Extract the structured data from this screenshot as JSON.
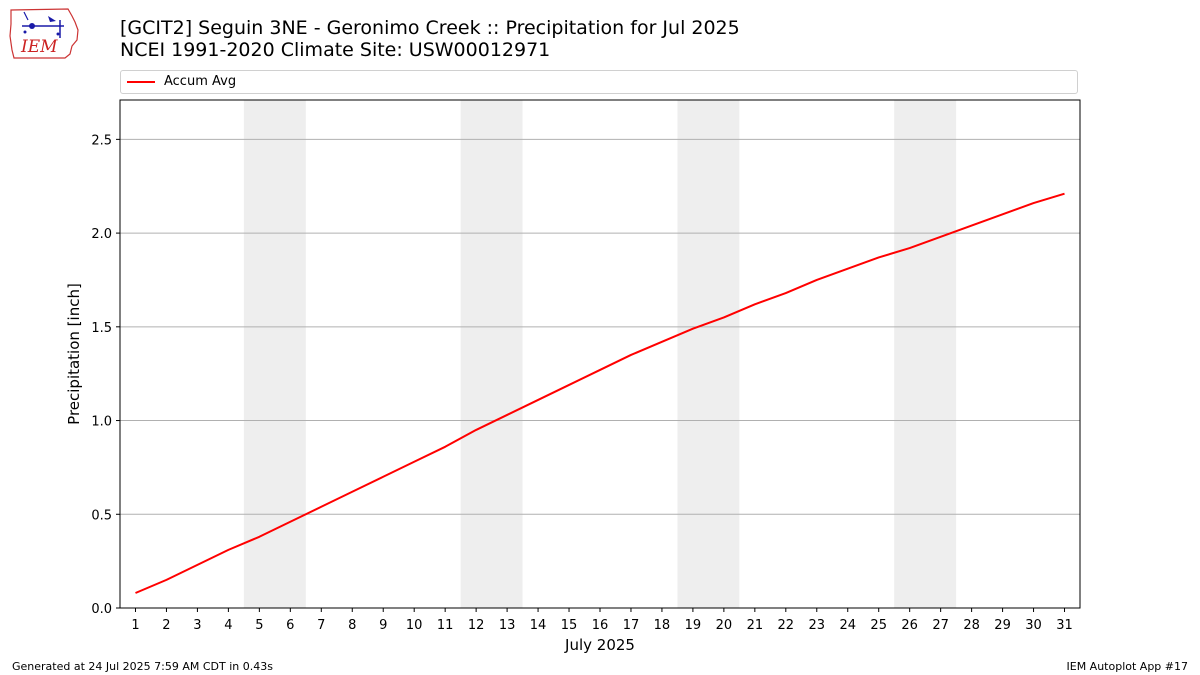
{
  "title_line1": "[GCIT2] Seguin 3NE - Geronimo Creek :: Precipitation for Jul 2025",
  "title_line2": "NCEI 1991-2020 Climate Site: USW00012971",
  "footer_left": "Generated at 24 Jul 2025 7:59 AM CDT in 0.43s",
  "footer_right": "IEM Autoplot App #17",
  "logo_text": "IEM",
  "colors": {
    "series": "#ff0000",
    "weekend_shade": "#eeeeee",
    "grid": "#b0b0b0"
  },
  "chart_data": {
    "type": "line",
    "xlabel": "July 2025",
    "ylabel": "Precipitation [inch]",
    "xlim": [
      0.5,
      31.5
    ],
    "ylim": [
      0,
      2.71
    ],
    "yticks": [
      0.0,
      0.5,
      1.0,
      1.5,
      2.0,
      2.5
    ],
    "ytick_labels": [
      "0.0",
      "0.5",
      "1.0",
      "1.5",
      "2.0",
      "2.5"
    ],
    "x": [
      1,
      2,
      3,
      4,
      5,
      6,
      7,
      8,
      9,
      10,
      11,
      12,
      13,
      14,
      15,
      16,
      17,
      18,
      19,
      20,
      21,
      22,
      23,
      24,
      25,
      26,
      27,
      28,
      29,
      30,
      31
    ],
    "xtick_labels": [
      "1",
      "2",
      "3",
      "4",
      "5",
      "6",
      "7",
      "8",
      "9",
      "10",
      "11",
      "12",
      "13",
      "14",
      "15",
      "16",
      "17",
      "18",
      "19",
      "20",
      "21",
      "22",
      "23",
      "24",
      "25",
      "26",
      "27",
      "28",
      "29",
      "30",
      "31"
    ],
    "shaded_days": [
      [
        5,
        6
      ],
      [
        12,
        13
      ],
      [
        19,
        20
      ],
      [
        26,
        27
      ]
    ],
    "grid": "y",
    "legend": "top",
    "series": [
      {
        "name": "Accum Avg",
        "color": "#ff0000",
        "values": [
          0.08,
          0.15,
          0.23,
          0.31,
          0.38,
          0.46,
          0.54,
          0.62,
          0.7,
          0.78,
          0.86,
          0.95,
          1.03,
          1.11,
          1.19,
          1.27,
          1.35,
          1.42,
          1.49,
          1.55,
          1.62,
          1.68,
          1.75,
          1.81,
          1.87,
          1.92,
          1.98,
          2.04,
          2.1,
          2.16,
          2.21
        ]
      }
    ]
  }
}
